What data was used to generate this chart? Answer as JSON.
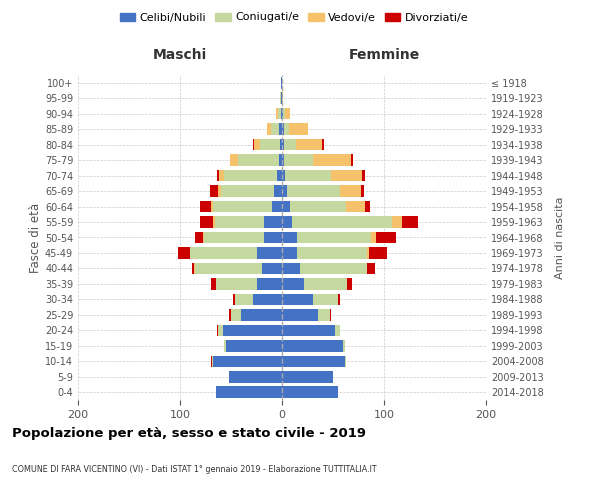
{
  "age_groups": [
    "0-4",
    "5-9",
    "10-14",
    "15-19",
    "20-24",
    "25-29",
    "30-34",
    "35-39",
    "40-44",
    "45-49",
    "50-54",
    "55-59",
    "60-64",
    "65-69",
    "70-74",
    "75-79",
    "80-84",
    "85-89",
    "90-94",
    "95-99",
    "100+"
  ],
  "birth_years": [
    "2014-2018",
    "2009-2013",
    "2004-2008",
    "1999-2003",
    "1994-1998",
    "1989-1993",
    "1984-1988",
    "1979-1983",
    "1974-1978",
    "1969-1973",
    "1964-1968",
    "1959-1963",
    "1954-1958",
    "1949-1953",
    "1944-1948",
    "1939-1943",
    "1934-1938",
    "1929-1933",
    "1924-1928",
    "1919-1923",
    "≤ 1918"
  ],
  "maschi": {
    "celibi": [
      65,
      52,
      68,
      55,
      58,
      40,
      28,
      25,
      20,
      25,
      18,
      18,
      10,
      8,
      5,
      3,
      2,
      3,
      1,
      1,
      1
    ],
    "coniugati": [
      0,
      0,
      1,
      2,
      5,
      10,
      18,
      40,
      65,
      65,
      58,
      48,
      58,
      52,
      52,
      40,
      20,
      8,
      3,
      1,
      0
    ],
    "vedovi": [
      0,
      0,
      0,
      0,
      0,
      0,
      0,
      0,
      1,
      0,
      1,
      2,
      2,
      3,
      5,
      8,
      5,
      4,
      2,
      0,
      0
    ],
    "divorziati": [
      0,
      0,
      1,
      0,
      1,
      2,
      2,
      5,
      2,
      12,
      8,
      12,
      10,
      8,
      2,
      0,
      1,
      0,
      0,
      0,
      0
    ]
  },
  "femmine": {
    "nubili": [
      55,
      50,
      62,
      60,
      52,
      35,
      30,
      22,
      18,
      15,
      15,
      10,
      8,
      5,
      3,
      2,
      2,
      2,
      1,
      0,
      0
    ],
    "coniugate": [
      0,
      0,
      1,
      2,
      5,
      12,
      25,
      42,
      65,
      68,
      72,
      98,
      55,
      52,
      45,
      28,
      12,
      5,
      2,
      0,
      0
    ],
    "vedove": [
      0,
      0,
      0,
      0,
      0,
      0,
      0,
      0,
      0,
      2,
      5,
      10,
      18,
      20,
      30,
      38,
      25,
      18,
      5,
      1,
      0
    ],
    "divorziate": [
      0,
      0,
      0,
      0,
      0,
      1,
      2,
      5,
      8,
      18,
      20,
      15,
      5,
      3,
      3,
      2,
      2,
      0,
      0,
      0,
      0
    ]
  },
  "colors": {
    "celibi": "#4472c4",
    "coniugati": "#c5d8a0",
    "vedovi": "#f5c26b",
    "divorziati": "#cc0000"
  },
  "xlim": 200,
  "title": "Popolazione per età, sesso e stato civile - 2019",
  "subtitle": "COMUNE DI FARA VICENTINO (VI) - Dati ISTAT 1° gennaio 2019 - Elaborazione TUTTITALIA.IT",
  "ylabel": "Fasce di età",
  "ylabel_right": "Anni di nascita",
  "legend_labels": [
    "Celibi/Nubili",
    "Coniugati/e",
    "Vedovi/e",
    "Divorziati/e"
  ],
  "header_maschi": "Maschi",
  "header_femmine": "Femmine"
}
